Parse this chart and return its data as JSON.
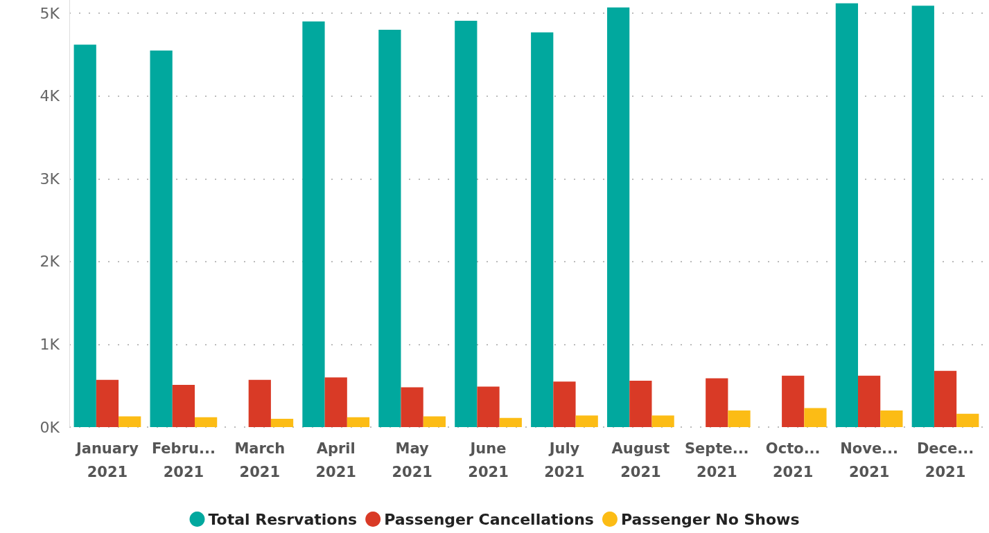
{
  "chart_data": {
    "type": "bar",
    "categories": [
      "January\n2021",
      "Febru...\n2021",
      "March\n2021",
      "April\n2021",
      "May\n2021",
      "June\n2021",
      "July\n2021",
      "August\n2021",
      "Septe...\n2021",
      "Octo...\n2021",
      "Nove...\n2021",
      "Dece...\n2021"
    ],
    "series": [
      {
        "name": "Total Resrvations",
        "color": "#01a89e",
        "values": [
          4620,
          4550,
          null,
          4900,
          4800,
          4910,
          4770,
          5070,
          null,
          null,
          5120,
          5090
        ]
      },
      {
        "name": "Passenger Cancellations",
        "color": "#d93a26",
        "values": [
          570,
          510,
          570,
          600,
          480,
          490,
          550,
          560,
          590,
          620,
          620,
          680
        ]
      },
      {
        "name": "Passenger No Shows",
        "color": "#fcbc15",
        "values": [
          130,
          120,
          100,
          120,
          130,
          110,
          140,
          140,
          200,
          230,
          200,
          160
        ]
      }
    ],
    "ylim": [
      0,
      5160
    ],
    "yticks": [
      {
        "value": 0,
        "label": "0K"
      },
      {
        "value": 1000,
        "label": "1K"
      },
      {
        "value": 2000,
        "label": "2K"
      },
      {
        "value": 3000,
        "label": "3K"
      },
      {
        "value": 4000,
        "label": "4K"
      },
      {
        "value": 5000,
        "label": "5K"
      }
    ],
    "grid": "y",
    "legend": "bottom"
  }
}
